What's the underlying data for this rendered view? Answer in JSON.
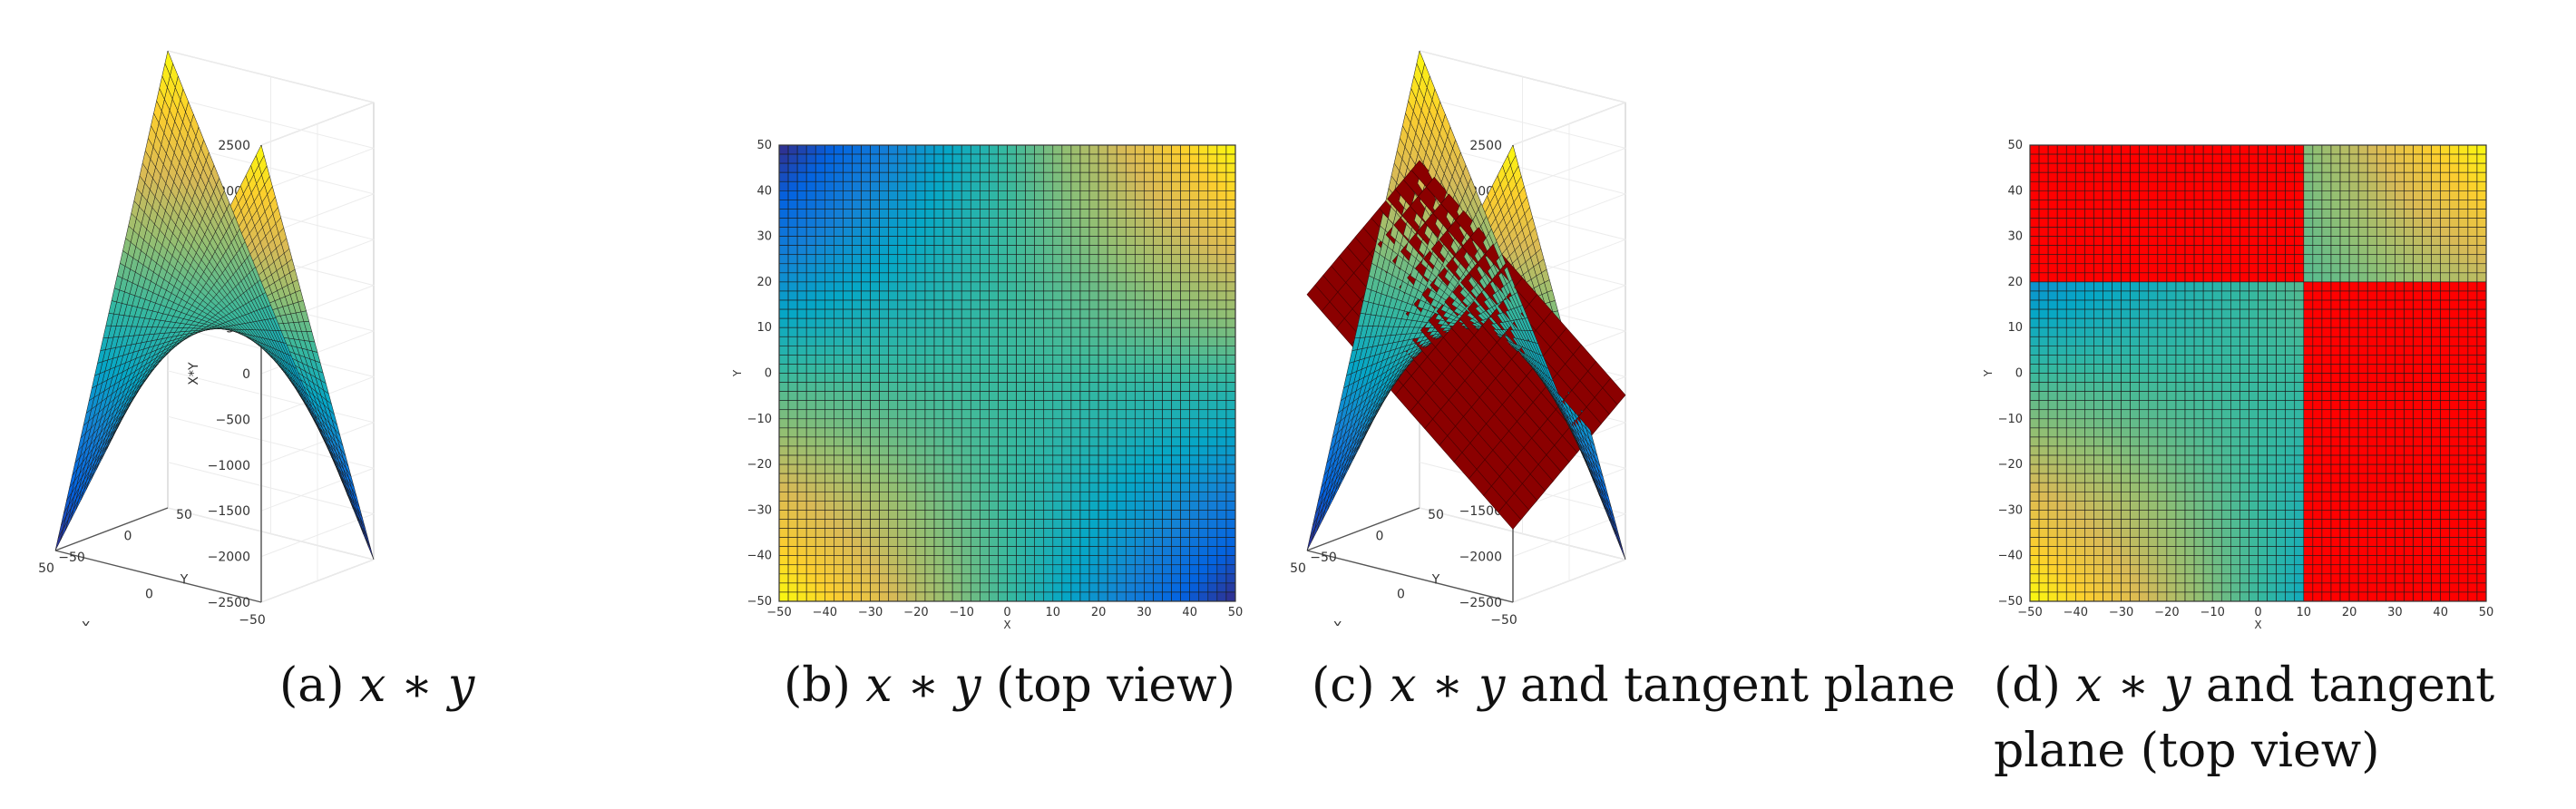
{
  "chart_data": [
    {
      "type": "surface3d",
      "function": "x*y",
      "caption": {
        "prefix": "(a) ",
        "math": "x ∗ y",
        "suffix": ""
      },
      "xlabel": "X",
      "ylabel": "Y",
      "zlabel": "X*Y",
      "xlim": [
        -50,
        50
      ],
      "ylim": [
        -50,
        50
      ],
      "zlim": [
        -2500,
        2500
      ],
      "xticks": [
        "−50",
        "0",
        "50"
      ],
      "yticks": [
        "−50",
        "0",
        "50"
      ],
      "zticks": [
        "2500",
        "2000",
        "1500",
        "1000",
        "500",
        "0",
        "−500",
        "−1000",
        "−1500",
        "−2000",
        "−2500"
      ],
      "grid": true,
      "tangent_plane": false,
      "colormap": "parula"
    },
    {
      "type": "heatmap",
      "function": "x*y",
      "caption": {
        "prefix": "(b) ",
        "math": "x ∗ y",
        "suffix": " (top view)"
      },
      "xlabel": "X",
      "ylabel": "Y",
      "xlim": [
        -50,
        50
      ],
      "ylim": [
        -50,
        50
      ],
      "xticks": [
        "−50",
        "−40",
        "−30",
        "−20",
        "−10",
        "0",
        "10",
        "20",
        "30",
        "40",
        "50"
      ],
      "yticks": [
        "50",
        "40",
        "30",
        "20",
        "10",
        "0",
        "−10",
        "−20",
        "−30",
        "−40",
        "−50"
      ],
      "grid_cells": 50,
      "colormap": "parula"
    },
    {
      "type": "surface3d",
      "function": "x*y",
      "caption": {
        "prefix": "(c) ",
        "math": "x ∗ y",
        "suffix": " and tangent plane"
      },
      "xlabel": "X",
      "ylabel": "Y",
      "zlabel": "X*Y",
      "xlim": [
        -50,
        50
      ],
      "ylim": [
        -50,
        50
      ],
      "zlim": [
        -2500,
        2500
      ],
      "xticks": [
        "−50",
        "0",
        "50"
      ],
      "yticks": [
        "−50",
        "0",
        "50"
      ],
      "zticks": [
        "2500",
        "2000",
        "1500",
        "1000",
        "500",
        "0",
        "−500",
        "−1000",
        "−1500",
        "−2000",
        "−2500"
      ],
      "grid": true,
      "tangent_plane": true,
      "tangent_point": [
        10,
        20
      ],
      "plane_color": "#8b0000",
      "colormap": "parula"
    },
    {
      "type": "heatmap",
      "function": "x*y",
      "caption": {
        "prefix": "(d) ",
        "math": "x ∗ y",
        "suffix": " and tangent",
        "line2": "plane (top view)"
      },
      "xlabel": "X",
      "ylabel": "Y",
      "xlim": [
        -50,
        50
      ],
      "ylim": [
        -50,
        50
      ],
      "xticks": [
        "−50",
        "−40",
        "−30",
        "−20",
        "−10",
        "0",
        "10",
        "20",
        "30",
        "40",
        "50"
      ],
      "yticks": [
        "50",
        "40",
        "30",
        "20",
        "10",
        "0",
        "−10",
        "−20",
        "−30",
        "−40",
        "−50"
      ],
      "grid_cells": 50,
      "tangent_point": [
        10,
        20
      ],
      "plane_color": "#ff0000",
      "colormap": "parula"
    }
  ]
}
